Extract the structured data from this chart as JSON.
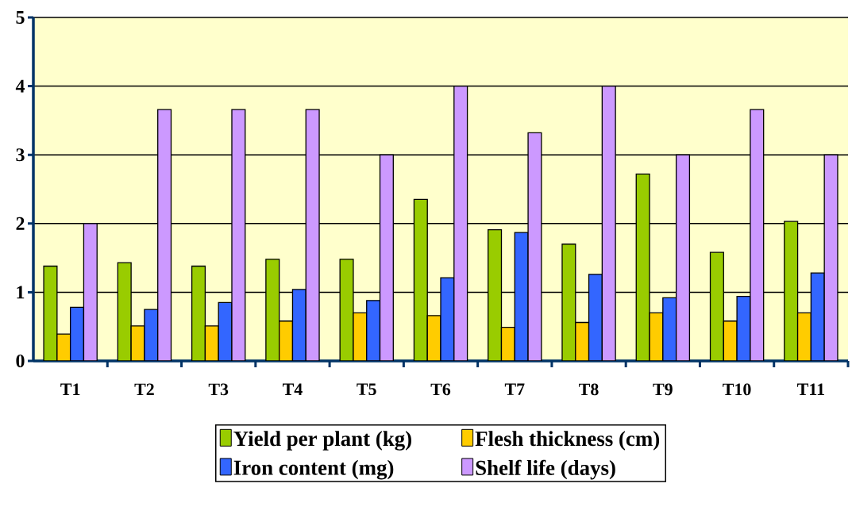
{
  "chart_data": {
    "type": "bar",
    "categories": [
      "T1",
      "T2",
      "T3",
      "T4",
      "T5",
      "T6",
      "T7",
      "T8",
      "T9",
      "T10",
      "T11"
    ],
    "series": [
      {
        "name": "Yield per plant (kg)",
        "color": "#99cc00",
        "values": [
          1.38,
          1.43,
          1.38,
          1.48,
          1.48,
          2.35,
          1.91,
          1.7,
          2.72,
          1.58,
          2.03
        ]
      },
      {
        "name": "Flesh thickness (cm)",
        "color": "#ffcc00",
        "values": [
          0.39,
          0.51,
          0.51,
          0.58,
          0.7,
          0.66,
          0.49,
          0.56,
          0.7,
          0.58,
          0.7
        ]
      },
      {
        "name": "Iron content (mg)",
        "color": "#3366ff",
        "values": [
          0.78,
          0.75,
          0.85,
          1.04,
          0.88,
          1.21,
          1.87,
          1.26,
          0.92,
          0.94,
          1.28
        ]
      },
      {
        "name": "Shelf life (days)",
        "color": "#cc99ff",
        "values": [
          2.0,
          3.66,
          3.66,
          3.66,
          3.0,
          4.0,
          3.32,
          4.0,
          3.0,
          3.66,
          3.0
        ]
      }
    ],
    "ylim": [
      0,
      5
    ],
    "yticks": [
      0,
      1,
      2,
      3,
      4,
      5
    ],
    "grid": "y",
    "legend": "bottom"
  }
}
